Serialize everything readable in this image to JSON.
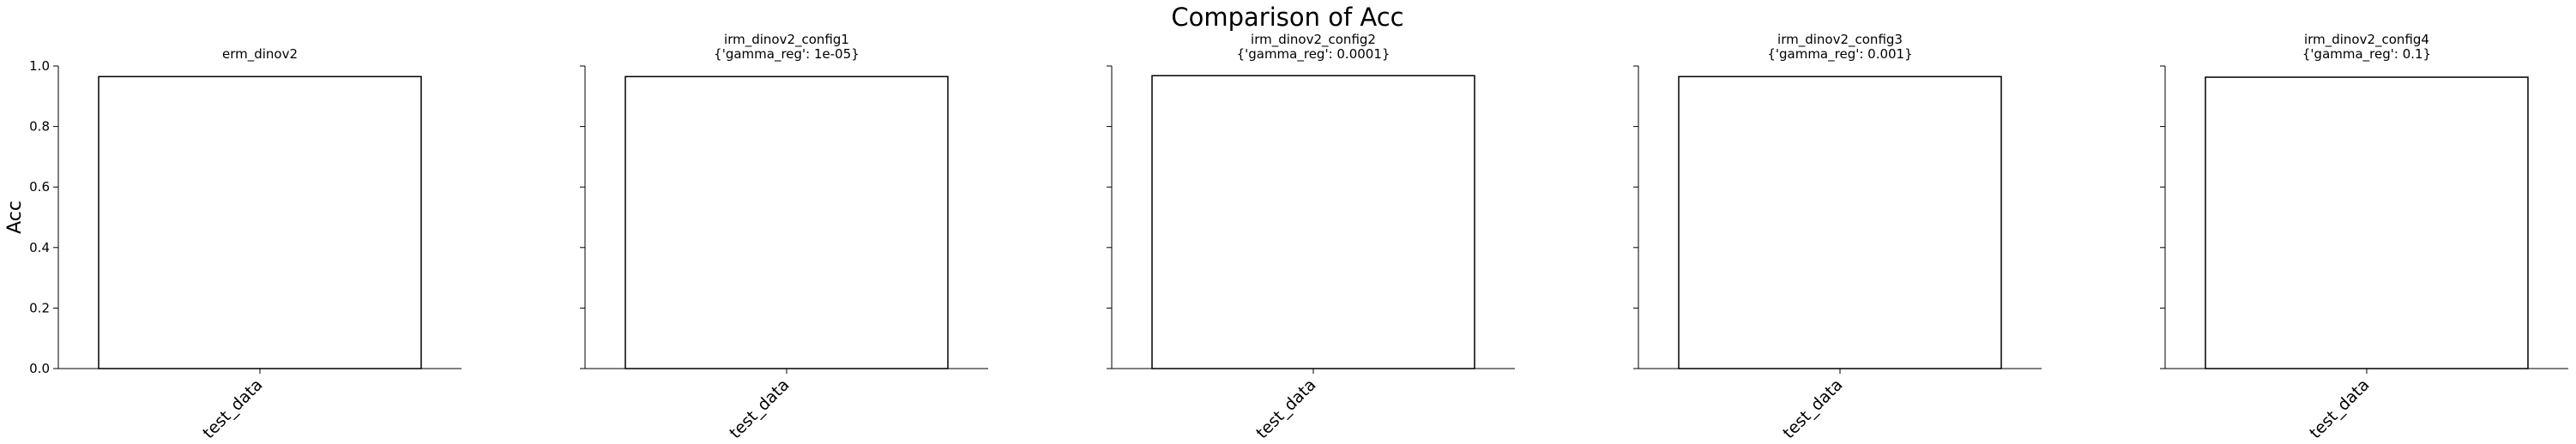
{
  "chart_data": {
    "type": "bar",
    "title": "Comparison of Acc",
    "ylabel": "Acc",
    "ylim": [
      0,
      1
    ],
    "yticks": [
      0.0,
      0.2,
      0.4,
      0.6,
      0.8,
      1.0
    ],
    "ytick_labels": [
      "0.0",
      "0.2",
      "0.4",
      "0.6",
      "0.8",
      "1.0"
    ],
    "grid": false,
    "legend": "none",
    "bar_fill": "#ffffff",
    "bar_edge": "#000000",
    "panels": [
      {
        "title_lines": [
          "erm_dinov2"
        ],
        "categories": [
          "test_data"
        ],
        "values": [
          0.965
        ]
      },
      {
        "title_lines": [
          "irm_dinov2_config1",
          "{'gamma_reg': 1e-05}"
        ],
        "categories": [
          "test_data"
        ],
        "values": [
          0.965
        ]
      },
      {
        "title_lines": [
          "irm_dinov2_config2",
          "{'gamma_reg': 0.0001}"
        ],
        "categories": [
          "test_data"
        ],
        "values": [
          0.968
        ]
      },
      {
        "title_lines": [
          "irm_dinov2_config3",
          "{'gamma_reg': 0.001}"
        ],
        "categories": [
          "test_data"
        ],
        "values": [
          0.965
        ]
      },
      {
        "title_lines": [
          "irm_dinov2_config4",
          "{'gamma_reg': 0.1}"
        ],
        "categories": [
          "test_data"
        ],
        "values": [
          0.963
        ]
      }
    ]
  }
}
